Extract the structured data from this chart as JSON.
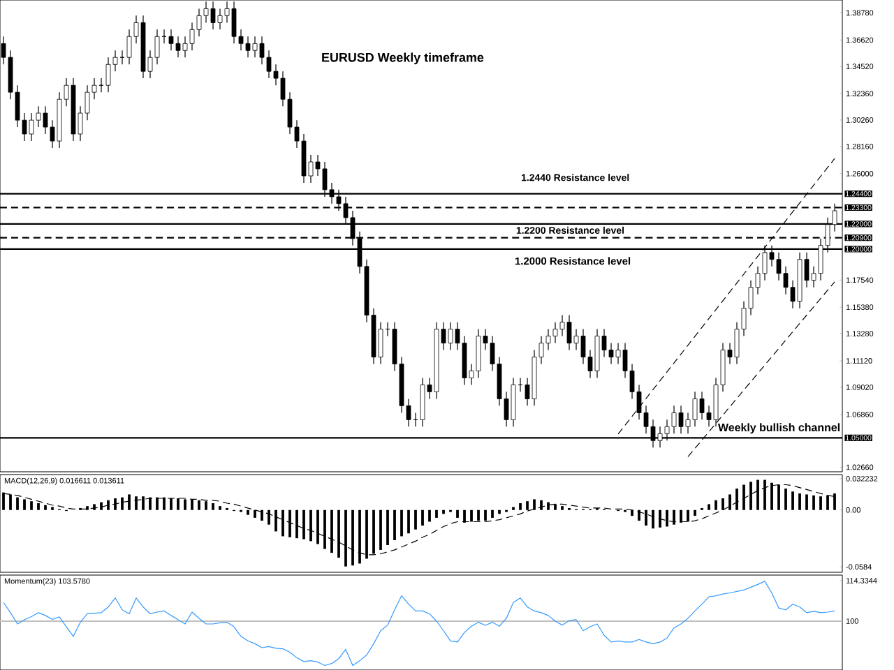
{
  "chart_data": [
    {
      "type": "candlestick",
      "title": "EURUSD Weekly timeframe",
      "color": "#000000",
      "tick_labels": "y",
      "categories": [
        null,
        null,
        null,
        null,
        null,
        null,
        null,
        null,
        null,
        null,
        null,
        null,
        null,
        null,
        null,
        null,
        null,
        null,
        null,
        null,
        null,
        null,
        null,
        null,
        null,
        null,
        null,
        null,
        null,
        null,
        null,
        null,
        null,
        null,
        null,
        null,
        null,
        null,
        null,
        null,
        null,
        null,
        null,
        null,
        null,
        null,
        null,
        null,
        null,
        null,
        null,
        null,
        null,
        null,
        null,
        null,
        null,
        null,
        null,
        null,
        null,
        null,
        null,
        null,
        null,
        null,
        null,
        null,
        null,
        null,
        null,
        null,
        null,
        null,
        null,
        null,
        null,
        null,
        null,
        null,
        null,
        null,
        null,
        null,
        null,
        null,
        null,
        null,
        null,
        null,
        null,
        null,
        null,
        null,
        null,
        null,
        null,
        null,
        null,
        null,
        null,
        null,
        null,
        null,
        null,
        null,
        null,
        null,
        null,
        null,
        null,
        null,
        null,
        null,
        null,
        null,
        null,
        null,
        null,
        null
      ],
      "ohlc": [
        [
          1.3634,
          1.369,
          1.3468,
          1.3524
        ],
        [
          1.3524,
          1.3579,
          1.3191,
          1.3247
        ],
        [
          1.3247,
          1.3302,
          1.297,
          1.3025
        ],
        [
          1.3025,
          1.3081,
          1.2859,
          1.2915
        ],
        [
          1.2915,
          1.3081,
          1.2859,
          1.3025
        ],
        [
          1.3025,
          1.3136,
          1.297,
          1.3081
        ],
        [
          1.3081,
          1.3136,
          1.2915,
          1.297
        ],
        [
          1.297,
          1.3025,
          1.2804,
          1.2859
        ],
        [
          1.2859,
          1.3247,
          1.2804,
          1.3191
        ],
        [
          1.3191,
          1.3358,
          1.3136,
          1.3302
        ],
        [
          1.3302,
          1.3358,
          1.2859,
          1.2915
        ],
        [
          1.2915,
          1.3136,
          1.2859,
          1.3081
        ],
        [
          1.3081,
          1.3302,
          1.3025,
          1.3247
        ],
        [
          1.3247,
          1.3358,
          1.3191,
          1.3302
        ],
        [
          1.3302,
          1.3358,
          1.3247,
          1.3302
        ],
        [
          1.3302,
          1.3524,
          1.3247,
          1.3468
        ],
        [
          1.3468,
          1.3579,
          1.3413,
          1.3524
        ],
        [
          1.3524,
          1.3579,
          1.3468,
          1.3524
        ],
        [
          1.3524,
          1.3745,
          1.3468,
          1.369
        ],
        [
          1.369,
          1.3856,
          1.3634,
          1.38
        ],
        [
          1.38,
          1.3856,
          1.3358,
          1.3413
        ],
        [
          1.3413,
          1.3579,
          1.3358,
          1.3524
        ],
        [
          1.3524,
          1.3745,
          1.3468,
          1.369
        ],
        [
          1.369,
          1.3745,
          1.3634,
          1.369
        ],
        [
          1.369,
          1.3745,
          1.3579,
          1.3634
        ],
        [
          1.3634,
          1.369,
          1.3524,
          1.3579
        ],
        [
          1.3579,
          1.369,
          1.3524,
          1.3634
        ],
        [
          1.3634,
          1.38,
          1.3579,
          1.3745
        ],
        [
          1.3745,
          1.3911,
          1.369,
          1.3856
        ],
        [
          1.3856,
          1.3967,
          1.38,
          1.3911
        ],
        [
          1.3911,
          1.3967,
          1.3745,
          1.38
        ],
        [
          1.38,
          1.3911,
          1.3745,
          1.3856
        ],
        [
          1.3856,
          1.3967,
          1.38,
          1.3911
        ],
        [
          1.3911,
          1.3967,
          1.3634,
          1.369
        ],
        [
          1.369,
          1.3745,
          1.3579,
          1.3634
        ],
        [
          1.3634,
          1.369,
          1.3524,
          1.3579
        ],
        [
          1.3579,
          1.369,
          1.3524,
          1.3634
        ],
        [
          1.3634,
          1.369,
          1.3468,
          1.3524
        ],
        [
          1.3524,
          1.3579,
          1.3358,
          1.3413
        ],
        [
          1.3413,
          1.3468,
          1.3302,
          1.3358
        ],
        [
          1.3358,
          1.3413,
          1.3136,
          1.3191
        ],
        [
          1.3191,
          1.3247,
          1.2915,
          1.297
        ],
        [
          1.297,
          1.3025,
          1.2804,
          1.2859
        ],
        [
          1.2859,
          1.2915,
          1.2527,
          1.2582
        ],
        [
          1.2582,
          1.2748,
          1.2527,
          1.2693
        ],
        [
          1.2693,
          1.2748,
          1.2582,
          1.2638
        ],
        [
          1.2638,
          1.2693,
          1.2416,
          1.2472
        ],
        [
          1.2472,
          1.2527,
          1.2361,
          1.2416
        ],
        [
          1.2416,
          1.2472,
          1.2305,
          1.2361
        ],
        [
          1.2361,
          1.2416,
          1.2195,
          1.225
        ],
        [
          1.225,
          1.2305,
          1.2029,
          1.2084
        ],
        [
          1.2084,
          1.2139,
          1.1807,
          1.1862
        ],
        [
          1.1862,
          1.1918,
          1.1419,
          1.1475
        ],
        [
          1.1475,
          1.153,
          1.1087,
          1.1142
        ],
        [
          1.1142,
          1.1419,
          1.1087,
          1.1364
        ],
        [
          1.1364,
          1.1419,
          1.1309,
          1.1364
        ],
        [
          1.1364,
          1.1419,
          1.1032,
          1.1087
        ],
        [
          1.1087,
          1.1142,
          1.0699,
          1.0755
        ],
        [
          1.0755,
          1.081,
          1.0589,
          1.0644
        ],
        [
          1.0644,
          1.0699,
          1.0589,
          1.0644
        ],
        [
          1.0644,
          1.0976,
          1.0589,
          1.0921
        ],
        [
          1.0921,
          1.0976,
          1.081,
          1.0866
        ],
        [
          1.0866,
          1.1419,
          1.081,
          1.1364
        ],
        [
          1.1364,
          1.1419,
          1.1198,
          1.1253
        ],
        [
          1.1253,
          1.1419,
          1.1198,
          1.1364
        ],
        [
          1.1364,
          1.1419,
          1.1198,
          1.1253
        ],
        [
          1.1253,
          1.1309,
          1.0921,
          1.0976
        ],
        [
          1.0976,
          1.1087,
          1.0921,
          1.1032
        ],
        [
          1.1032,
          1.1364,
          1.0976,
          1.1309
        ],
        [
          1.1309,
          1.1364,
          1.1198,
          1.1253
        ],
        [
          1.1253,
          1.1309,
          1.1032,
          1.1087
        ],
        [
          1.1087,
          1.1142,
          1.0755,
          1.081
        ],
        [
          1.081,
          1.0866,
          1.0589,
          1.0644
        ],
        [
          1.0644,
          1.0976,
          1.0589,
          1.0921
        ],
        [
          1.0921,
          1.0976,
          1.0866,
          1.0921
        ],
        [
          1.0921,
          1.0976,
          1.0755,
          1.081
        ],
        [
          1.081,
          1.1198,
          1.0755,
          1.1142
        ],
        [
          1.1142,
          1.1309,
          1.1087,
          1.1253
        ],
        [
          1.1253,
          1.1364,
          1.1198,
          1.1309
        ],
        [
          1.1309,
          1.1419,
          1.1253,
          1.1364
        ],
        [
          1.1364,
          1.1475,
          1.1309,
          1.1419
        ],
        [
          1.1419,
          1.1475,
          1.1198,
          1.1253
        ],
        [
          1.1253,
          1.1364,
          1.1198,
          1.1309
        ],
        [
          1.1309,
          1.1364,
          1.1087,
          1.1142
        ],
        [
          1.1142,
          1.1198,
          1.0976,
          1.1032
        ],
        [
          1.1032,
          1.1364,
          1.0976,
          1.1309
        ],
        [
          1.1309,
          1.1364,
          1.1142,
          1.1198
        ],
        [
          1.1198,
          1.1253,
          1.1087,
          1.1142
        ],
        [
          1.1142,
          1.1253,
          1.1087,
          1.1198
        ],
        [
          1.1198,
          1.1253,
          1.0976,
          1.1032
        ],
        [
          1.1032,
          1.1087,
          1.081,
          1.0866
        ],
        [
          1.0866,
          1.0921,
          1.0644,
          1.0699
        ],
        [
          1.0699,
          1.0755,
          1.0533,
          1.0589
        ],
        [
          1.0589,
          1.0644,
          1.0423,
          1.0478
        ],
        [
          1.0478,
          1.0589,
          1.0423,
          1.0533
        ],
        [
          1.0533,
          1.0644,
          1.0478,
          1.0589
        ],
        [
          1.0589,
          1.0755,
          1.0533,
          1.0699
        ],
        [
          1.0699,
          1.0755,
          1.0533,
          1.0589
        ],
        [
          1.0589,
          1.0699,
          1.0533,
          1.0644
        ],
        [
          1.0644,
          1.0866,
          1.0589,
          1.081
        ],
        [
          1.081,
          1.0866,
          1.0644,
          1.0699
        ],
        [
          1.0699,
          1.0755,
          1.0589,
          1.0644
        ],
        [
          1.0644,
          1.0976,
          1.0589,
          1.0921
        ],
        [
          1.0921,
          1.1253,
          1.0866,
          1.1198
        ],
        [
          1.1198,
          1.1253,
          1.1087,
          1.1142
        ],
        [
          1.1142,
          1.1419,
          1.1087,
          1.1364
        ],
        [
          1.1364,
          1.1585,
          1.1309,
          1.153
        ],
        [
          1.153,
          1.1752,
          1.1475,
          1.1696
        ],
        [
          1.1696,
          1.1862,
          1.1641,
          1.1807
        ],
        [
          1.1807,
          1.2029,
          1.1752,
          1.1973
        ],
        [
          1.1973,
          1.2029,
          1.1862,
          1.1918
        ],
        [
          1.1918,
          1.1973,
          1.1752,
          1.1807
        ],
        [
          1.1807,
          1.1862,
          1.1641,
          1.1696
        ],
        [
          1.1696,
          1.1752,
          1.153,
          1.1585
        ],
        [
          1.1585,
          1.1973,
          1.153,
          1.1918
        ],
        [
          1.1918,
          1.1973,
          1.1696,
          1.1752
        ],
        [
          1.1752,
          1.1862,
          1.1696,
          1.1807
        ],
        [
          1.1807,
          1.2084,
          1.1752,
          1.2029
        ],
        [
          1.2029,
          1.225,
          1.1973,
          1.2195
        ],
        [
          1.2195,
          1.2361,
          1.2139,
          1.2305
        ]
      ],
      "series": [
        {
          "type": "line",
          "color": "#000000",
          "line_style": "dashed",
          "values": [
            null,
            null,
            null,
            null,
            null,
            null,
            null,
            null,
            null,
            null,
            null,
            null,
            null,
            null,
            null,
            null,
            null,
            null,
            null,
            null,
            null,
            null,
            null,
            null,
            null,
            null,
            null,
            null,
            null,
            null,
            null,
            null,
            null,
            null,
            null,
            null,
            null,
            null,
            null,
            null,
            null,
            null,
            null,
            null,
            null,
            null,
            null,
            null,
            null,
            null,
            null,
            null,
            null,
            null,
            null,
            null,
            null,
            null,
            null,
            null,
            null,
            null,
            null,
            null,
            null,
            null,
            null,
            null,
            null,
            null,
            null,
            null,
            null,
            null,
            null,
            null,
            null,
            null,
            null,
            null,
            null,
            null,
            null,
            null,
            null,
            null,
            null,
            null,
            1.053,
            null,
            null,
            null,
            null,
            null,
            null,
            null,
            null,
            null,
            null,
            null,
            null,
            null,
            null,
            null,
            null,
            null,
            null,
            null,
            null,
            null,
            null,
            null,
            null,
            null,
            null,
            null,
            null,
            null,
            null,
            1.272
          ]
        },
        {
          "type": "line",
          "color": "#000000",
          "line_style": "dashed",
          "values": [
            null,
            null,
            null,
            null,
            null,
            null,
            null,
            null,
            null,
            null,
            null,
            null,
            null,
            null,
            null,
            null,
            null,
            null,
            null,
            null,
            null,
            null,
            null,
            null,
            null,
            null,
            null,
            null,
            null,
            null,
            null,
            null,
            null,
            null,
            null,
            null,
            null,
            null,
            null,
            null,
            null,
            null,
            null,
            null,
            null,
            null,
            null,
            null,
            null,
            null,
            null,
            null,
            null,
            null,
            null,
            null,
            null,
            null,
            null,
            null,
            null,
            null,
            null,
            null,
            null,
            null,
            null,
            null,
            null,
            null,
            null,
            null,
            null,
            null,
            null,
            null,
            null,
            null,
            null,
            null,
            null,
            null,
            null,
            null,
            null,
            null,
            null,
            null,
            null,
            null,
            null,
            null,
            null,
            null,
            null,
            null,
            null,
            null,
            1.035,
            null,
            null,
            null,
            null,
            null,
            null,
            null,
            null,
            null,
            null,
            null,
            null,
            null,
            null,
            null,
            null,
            null,
            null,
            null,
            null,
            1.174
          ]
        }
      ],
      "ylim": [
        1.023,
        1.398
      ],
      "yticks": [
        {
          "value": 1.3878,
          "label": "1.38780"
        },
        {
          "value": 1.3662,
          "label": "1.36620"
        },
        {
          "value": 1.3452,
          "label": "1.34520"
        },
        {
          "value": 1.3236,
          "label": "1.32360"
        },
        {
          "value": 1.3026,
          "label": "1.30260"
        },
        {
          "value": 1.2816,
          "label": "1.28160"
        },
        {
          "value": 1.26,
          "label": "1.26000"
        },
        {
          "value": 1.1754,
          "label": "1.17540"
        },
        {
          "value": 1.1538,
          "label": "1.15380"
        },
        {
          "value": 1.1328,
          "label": "1.13280"
        },
        {
          "value": 1.1112,
          "label": "1.11120"
        },
        {
          "value": 1.0902,
          "label": "1.09020"
        },
        {
          "value": 1.0686,
          "label": "1.06860"
        },
        {
          "value": 1.0266,
          "label": "1.02660"
        }
      ],
      "ref_lines": [
        {
          "axis": "y",
          "value": 1.244,
          "label": "1.24400",
          "line_style": "solid"
        },
        {
          "axis": "y",
          "value": 1.233,
          "label": "1.23300",
          "line_style": "dashed"
        },
        {
          "axis": "y",
          "value": 1.22,
          "label": "1.22000",
          "line_style": "solid"
        },
        {
          "axis": "y",
          "value": 1.209,
          "label": "1.20900",
          "line_style": "dashed"
        },
        {
          "axis": "y",
          "value": 1.2,
          "label": "1.20000",
          "line_style": "solid"
        },
        {
          "axis": "y",
          "value": 1.05,
          "label": "1.05000",
          "line_style": "solid"
        }
      ],
      "annotations": [
        "1.2440 Resistance level",
        "1.2200 Resistance level",
        "1.2000 Resistance level",
        "Weekly bullish channel"
      ]
    },
    {
      "type": "bar",
      "title": "MACD(12,26,9) 0.016611 0.013611",
      "tick_labels": "y",
      "categories": [
        null,
        null,
        null,
        null,
        null,
        null,
        null,
        null,
        null,
        null,
        null,
        null,
        null,
        null,
        null,
        null,
        null,
        null,
        null,
        null,
        null,
        null,
        null,
        null,
        null,
        null,
        null,
        null,
        null,
        null,
        null,
        null,
        null,
        null,
        null,
        null,
        null,
        null,
        null,
        null,
        null,
        null,
        null,
        null,
        null,
        null,
        null,
        null,
        null,
        null,
        null,
        null,
        null,
        null,
        null,
        null,
        null,
        null,
        null,
        null,
        null,
        null,
        null,
        null,
        null,
        null,
        null,
        null,
        null,
        null,
        null,
        null,
        null,
        null,
        null,
        null,
        null,
        null,
        null,
        null,
        null,
        null,
        null,
        null,
        null,
        null,
        null,
        null,
        null,
        null,
        null,
        null,
        null,
        null,
        null,
        null,
        null,
        null,
        null,
        null,
        null,
        null,
        null,
        null,
        null,
        null,
        null,
        null,
        null,
        null,
        null,
        null,
        null,
        null,
        null,
        null,
        null,
        null,
        null,
        null
      ],
      "series": [
        {
          "color": "#000000",
          "values": [
            0.018,
            0.016,
            0.013,
            0.011,
            0.009,
            0.007,
            0.005,
            0.003,
            0.001,
            -0.001,
            0.0,
            0.002,
            0.004,
            0.006,
            0.008,
            0.01,
            0.012,
            0.013,
            0.016,
            0.014,
            0.014,
            0.013,
            0.013,
            0.013,
            0.012,
            0.012,
            0.011,
            0.011,
            0.01,
            0.009,
            0.007,
            0.004,
            0.002,
            -0.001,
            -0.002,
            -0.005,
            -0.008,
            -0.011,
            -0.015,
            -0.022,
            -0.027,
            -0.028,
            -0.029,
            -0.03,
            -0.032,
            -0.035,
            -0.04,
            -0.044,
            -0.049,
            -0.058,
            -0.057,
            -0.055,
            -0.05,
            -0.045,
            -0.041,
            -0.036,
            -0.031,
            -0.027,
            -0.024,
            -0.02,
            -0.016,
            -0.012,
            -0.008,
            -0.004,
            -0.002,
            -0.008,
            -0.013,
            -0.012,
            -0.011,
            -0.011,
            -0.008,
            -0.004,
            -0.002,
            0.003,
            0.007,
            0.009,
            0.011,
            0.01,
            0.008,
            0.006,
            0.004,
            0.002,
            0.001,
            0.001,
            0.001,
            0.002,
            0.001,
            0.0,
            -0.001,
            -0.002,
            -0.006,
            -0.011,
            -0.016,
            -0.019,
            -0.018,
            -0.017,
            -0.015,
            -0.013,
            -0.012,
            -0.006,
            0.002,
            0.006,
            0.01,
            0.012,
            0.016,
            0.022,
            0.026,
            0.029,
            0.031,
            0.031,
            0.028,
            0.026,
            0.022,
            0.019,
            0.017,
            0.016,
            0.015,
            0.014,
            0.015,
            0.017
          ]
        },
        {
          "type": "line",
          "color": "#000000",
          "line_style": "dashed",
          "values": [
            0.017,
            0.016,
            0.015,
            0.013,
            0.011,
            0.009,
            0.007,
            0.005,
            0.004,
            0.002,
            0.001,
            0.001,
            0.001,
            0.002,
            0.003,
            0.005,
            0.006,
            0.008,
            0.009,
            0.01,
            0.011,
            0.012,
            0.012,
            0.012,
            0.012,
            0.012,
            0.012,
            0.011,
            0.011,
            0.01,
            0.01,
            0.009,
            0.007,
            0.006,
            0.004,
            0.002,
            0.0,
            -0.002,
            -0.004,
            -0.007,
            -0.01,
            -0.013,
            -0.016,
            -0.019,
            -0.021,
            -0.024,
            -0.027,
            -0.03,
            -0.033,
            -0.037,
            -0.041,
            -0.044,
            -0.046,
            -0.046,
            -0.045,
            -0.043,
            -0.041,
            -0.038,
            -0.035,
            -0.032,
            -0.028,
            -0.025,
            -0.021,
            -0.017,
            -0.014,
            -0.012,
            -0.012,
            -0.012,
            -0.012,
            -0.012,
            -0.011,
            -0.01,
            -0.008,
            -0.006,
            -0.004,
            -0.001,
            0.001,
            0.003,
            0.005,
            0.006,
            0.006,
            0.005,
            0.004,
            0.003,
            0.002,
            0.002,
            0.002,
            0.001,
            0.001,
            0.001,
            0.0,
            -0.002,
            -0.004,
            -0.007,
            -0.009,
            -0.011,
            -0.012,
            -0.012,
            -0.012,
            -0.011,
            -0.009,
            -0.006,
            -0.003,
            0.0,
            0.004,
            0.008,
            0.012,
            0.016,
            0.02,
            0.023,
            0.025,
            0.026,
            0.026,
            0.025,
            0.023,
            0.021,
            0.019,
            0.017,
            0.015,
            0.014
          ]
        }
      ],
      "ylim": [
        -0.064,
        0.0364
      ],
      "yticks": [
        0.032232,
        {
          "value": 0,
          "label": "0.00"
        },
        -0.0584
      ]
    },
    {
      "type": "line",
      "title": "Momentum(23) 103.5780",
      "tick_labels": "y",
      "categories": [
        null,
        null,
        null,
        null,
        null,
        null,
        null,
        null,
        null,
        null,
        null,
        null,
        null,
        null,
        null,
        null,
        null,
        null,
        null,
        null,
        null,
        null,
        null,
        null,
        null,
        null,
        null,
        null,
        null,
        null,
        null,
        null,
        null,
        null,
        null,
        null,
        null,
        null,
        null,
        null,
        null,
        null,
        null,
        null,
        null,
        null,
        null,
        null,
        null,
        null,
        null,
        null,
        null,
        null,
        null,
        null,
        null,
        null,
        null,
        null,
        null,
        null,
        null,
        null,
        null,
        null,
        null,
        null,
        null,
        null,
        null,
        null,
        null,
        null,
        null,
        null,
        null,
        null,
        null,
        null,
        null,
        null,
        null,
        null,
        null,
        null,
        null,
        null,
        null,
        null,
        null,
        null,
        null,
        null,
        null,
        null,
        null,
        null,
        null,
        null,
        null,
        null,
        null,
        null,
        null,
        null,
        null,
        null,
        null,
        null,
        null,
        null,
        null,
        null,
        null,
        null,
        null,
        null,
        null,
        null
      ],
      "series": [
        {
          "color": "#3399ff",
          "values": [
            106.6,
            103,
            99,
            100.5,
            101.6,
            103,
            102,
            100.6,
            101.5,
            98,
            94.6,
            99.6,
            102.6,
            102.8,
            103,
            105,
            108.2,
            104,
            102.6,
            108.2,
            105,
            102.6,
            103.2,
            103.6,
            102,
            100.5,
            99,
            103.2,
            101,
            99,
            99,
            99.4,
            99.6,
            98,
            94.6,
            93,
            92,
            90.6,
            91,
            90.4,
            90.2,
            89,
            87,
            85.7,
            86,
            85.5,
            84.3,
            85,
            86.7,
            90,
            84.3,
            86,
            88,
            92,
            96.6,
            98.6,
            104,
            109,
            106,
            103.6,
            103.6,
            102.6,
            100,
            96.6,
            93,
            92.6,
            96,
            98.2,
            99.6,
            98.5,
            99.6,
            98.2,
            101,
            106.6,
            108.2,
            105,
            103.6,
            103,
            102,
            100,
            98.6,
            100.2,
            100.5,
            96.6,
            98,
            99,
            95,
            92.6,
            93,
            92.6,
            92.6,
            93.5,
            92.6,
            92,
            92.6,
            94,
            97.6,
            99,
            101,
            103.6,
            106,
            108.6,
            109,
            109.6,
            110,
            110.5,
            111,
            112,
            113,
            114.1,
            110,
            104.6,
            104,
            106,
            105,
            103,
            103.5,
            103,
            103.2,
            103.6
          ]
        }
      ],
      "ylim": [
        82.7,
        116.3
      ],
      "yticks": [
        114.3344,
        100
      ],
      "ref_lines": [
        {
          "axis": "y",
          "value": 100,
          "color": "#c0c0c0",
          "line_style": "solid"
        }
      ]
    }
  ]
}
